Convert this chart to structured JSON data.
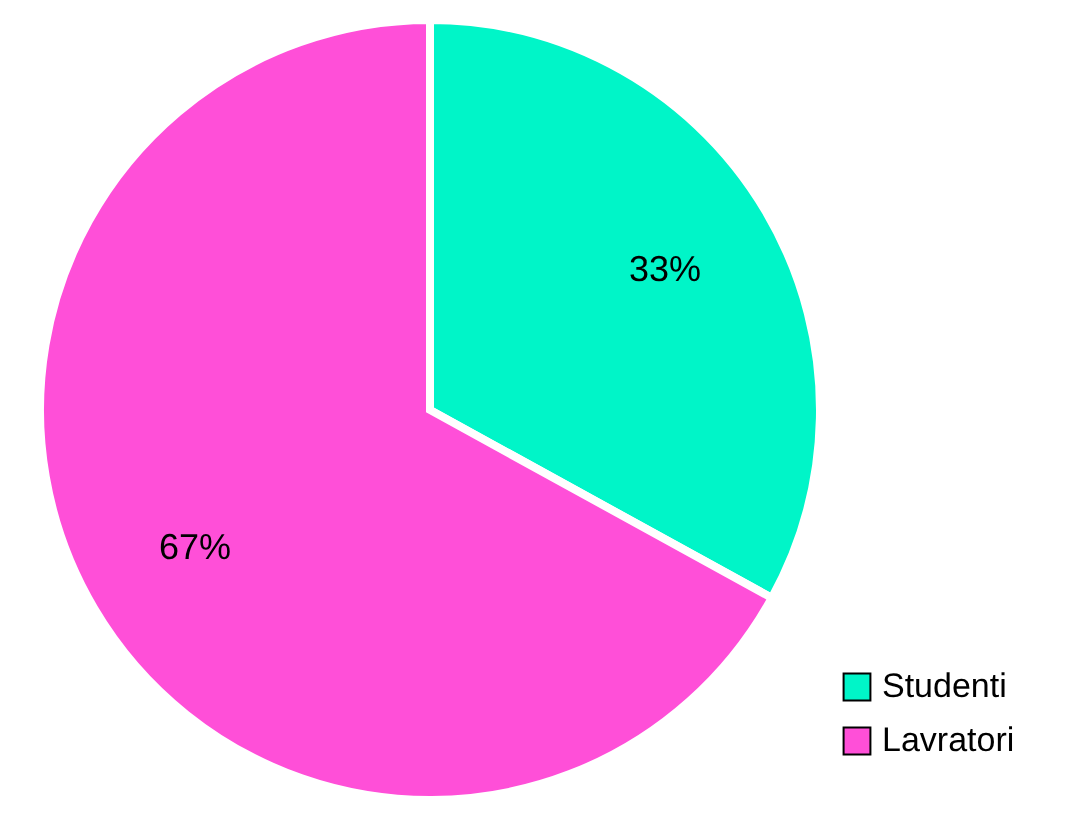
{
  "chart_data": {
    "type": "pie",
    "categories": [
      "Studenti",
      "Lavratori"
    ],
    "values": [
      33,
      67
    ],
    "colors": [
      "#00f5c8",
      "#ff4fd8"
    ],
    "value_labels": [
      "33%",
      "67%"
    ],
    "legend": "bottom right"
  }
}
